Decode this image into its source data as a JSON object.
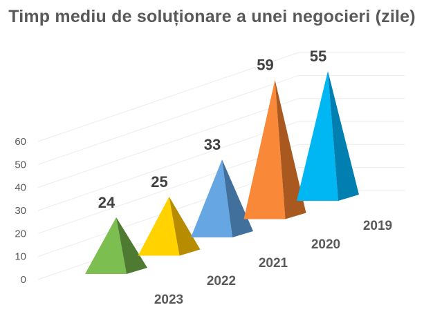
{
  "chart_data": {
    "type": "bar",
    "subtype": "3d-pyramid",
    "title": "Timp mediu de soluționare a unei negocieri (zile)",
    "xlabel": "",
    "ylabel": "",
    "categories": [
      "2023",
      "2022",
      "2021",
      "2020",
      "2019"
    ],
    "values": [
      24,
      25,
      33,
      59,
      55
    ],
    "data_labels": [
      "24",
      "25",
      "33",
      "59",
      "55"
    ],
    "ylim": [
      0,
      60
    ],
    "yticks": [
      "0",
      "10",
      "20",
      "30",
      "40",
      "50",
      "60"
    ],
    "grid": true,
    "legend": "none",
    "colors": [
      "#70ad47",
      "#ffc000",
      "#5b9bd5",
      "#ed7d31",
      "#00b0f0"
    ],
    "shade_colors": [
      "#4e7a32",
      "#b88c00",
      "#41709c",
      "#a9581f",
      "#007fb0"
    ],
    "front_colors": [
      "#7cbf50",
      "#ffd200",
      "#66a6e3",
      "#f98838",
      "#00b6f3"
    ]
  }
}
